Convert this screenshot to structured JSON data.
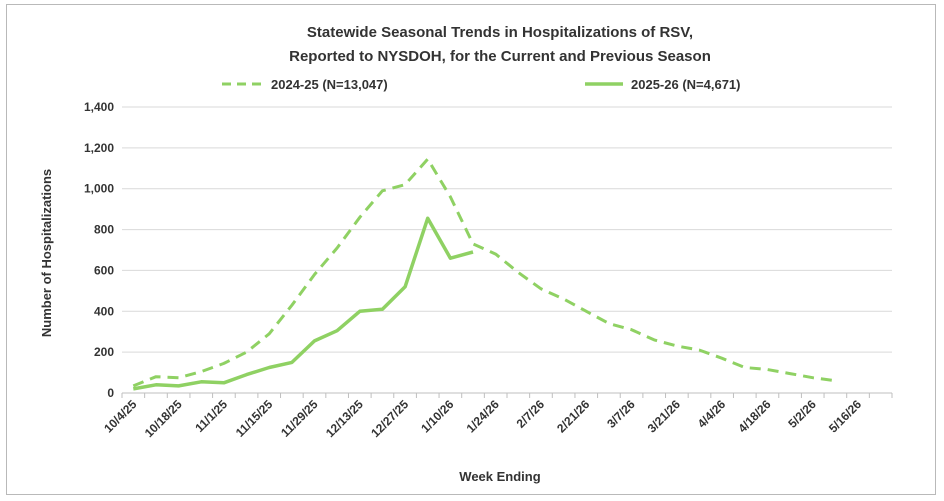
{
  "chart_data": {
    "type": "line",
    "title_line1": "Statewide Seasonal Trends in Hospitalizations of RSV,",
    "title_line2": "Reported to NYSDOH, for the Current and Previous Season",
    "xlabel": "Week Ending",
    "ylabel": "Number of Hospitalizations",
    "ylim": [
      0,
      1400
    ],
    "yticks": [
      "0",
      "200",
      "400",
      "600",
      "800",
      "1,000",
      "1,200",
      "1,400"
    ],
    "ytick_values": [
      0,
      200,
      400,
      600,
      800,
      1000,
      1200,
      1400
    ],
    "x_labels": [
      "10/4/25",
      "10/18/25",
      "11/1/25",
      "11/15/25",
      "11/29/25",
      "12/13/25",
      "12/27/25",
      "1/10/26",
      "1/24/26",
      "2/7/26",
      "2/21/26",
      "3/7/26",
      "3/21/26",
      "4/4/26",
      "4/18/26",
      "5/2/26",
      "5/16/26"
    ],
    "grid": true,
    "legend_position": "top",
    "color": "#8fd163",
    "series": [
      {
        "name": "2024-25 (N=13,047)",
        "style": "dashed",
        "values": [
          35,
          80,
          75,
          105,
          145,
          200,
          290,
          430,
          580,
          710,
          860,
          990,
          1020,
          1145,
          960,
          730,
          680,
          590,
          510,
          460,
          400,
          340,
          310,
          260,
          230,
          210,
          170,
          125,
          115,
          95,
          75,
          60
        ]
      },
      {
        "name": "2025-26 (N=4,671)",
        "style": "solid",
        "values": [
          20,
          40,
          35,
          55,
          50,
          90,
          125,
          150,
          255,
          305,
          400,
          410,
          520,
          855,
          660,
          690
        ]
      }
    ]
  }
}
